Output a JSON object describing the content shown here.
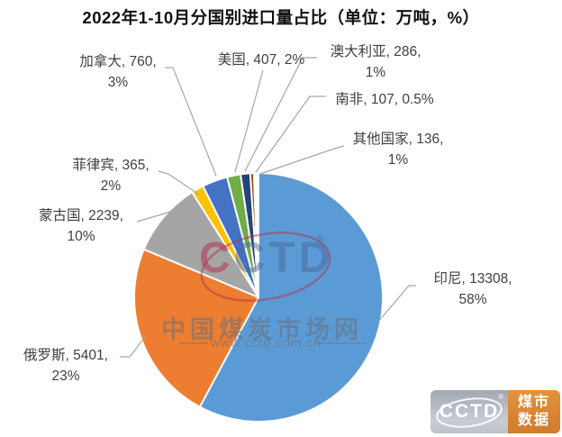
{
  "title": "2022年1-10月分国别进口量占比（单位：万吨，%）",
  "chart_data": {
    "type": "pie",
    "title": "2022年1-10月分国别进口量占比（单位：万吨，%）",
    "unit": "万吨，%",
    "start_angle_deg": 0,
    "direction": "clockwise",
    "legend": "none",
    "label_color": "#404040",
    "leader_line_color": "#A6A6A6",
    "slice_border_color": "#FFFFFF",
    "slices": [
      {
        "key": "indonesia",
        "name": "印尼",
        "value": 13308,
        "pct": "58%",
        "color": "#5B9BD5",
        "l1": "印尼, 13308,",
        "l2": "58%"
      },
      {
        "key": "russia",
        "name": "俄罗斯",
        "value": 5401,
        "pct": "23%",
        "color": "#ED7D31",
        "l1": "俄罗斯, 5401,",
        "l2": "23%"
      },
      {
        "key": "mongolia",
        "name": "蒙古国",
        "value": 2239,
        "pct": "10%",
        "color": "#A5A5A5",
        "l1": "蒙古国, 2239,",
        "l2": "10%"
      },
      {
        "key": "philippines",
        "name": "菲律宾",
        "value": 365,
        "pct": "2%",
        "color": "#FFC000",
        "l1": "菲律宾, 365,",
        "l2": "2%"
      },
      {
        "key": "canada",
        "name": "加拿大",
        "value": 760,
        "pct": "3%",
        "color": "#4472C4",
        "l1": "加拿大, 760,",
        "l2": "3%"
      },
      {
        "key": "usa",
        "name": "美国",
        "value": 407,
        "pct": "2%",
        "color": "#70AD47",
        "l1": "美国, 407, 2%",
        "l2": ""
      },
      {
        "key": "australia",
        "name": "澳大利亚",
        "value": 286,
        "pct": "1%",
        "color": "#264478",
        "l1": "澳大利亚, 286,",
        "l2": "1%"
      },
      {
        "key": "south-africa",
        "name": "南非",
        "value": 107,
        "pct": "0.5%",
        "color": "#9E480E",
        "l1": "南非, 107, 0.5%",
        "l2": ""
      },
      {
        "key": "others",
        "name": "其他国家",
        "value": 136,
        "pct": "1%",
        "color": "#FFFFFF",
        "l1": "其他国家, 136,",
        "l2": "1%"
      }
    ]
  },
  "watermark": {
    "logo_first_letter": "C",
    "logo_rest": "CTD",
    "registered": "®",
    "site_name": "中国煤炭市场网",
    "site_url": "www.cctd.com.cn"
  },
  "badge": {
    "logo_text": "CCTD",
    "registered": "®",
    "name_line1": "煤市",
    "name_line2": "数据",
    "panel_color": "#D07C2C"
  }
}
